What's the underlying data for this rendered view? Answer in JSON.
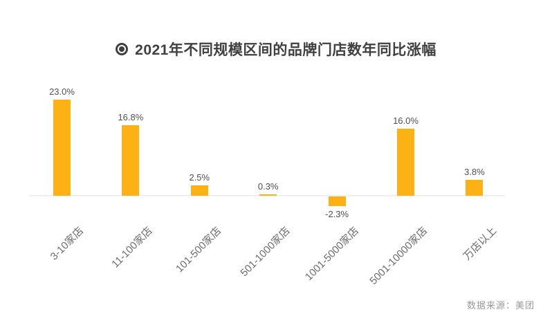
{
  "title": {
    "icon": "fisheye-bullet-icon",
    "text": "2021年不同规模区间的品牌门店数年同比涨幅"
  },
  "source": {
    "text": "数据来源：美团"
  },
  "colors": {
    "bar": "#FCB115",
    "title": "#404040",
    "value_label": "#4f4f4f",
    "axis_label": "#6b6b6b",
    "baseline": "#efefef",
    "source": "#999999"
  },
  "chart_data": {
    "type": "bar",
    "title": "2021年不同规模区间的品牌门店数年同比涨幅",
    "categories": [
      "3-10家店",
      "11-100家店",
      "101-500家店",
      "501-1000家店",
      "1001-5000家店",
      "5001-10000家店",
      "万店以上"
    ],
    "values": [
      23.0,
      16.8,
      2.5,
      0.3,
      -2.3,
      16.0,
      3.8
    ],
    "value_labels": [
      "23.0%",
      "16.8%",
      "2.5%",
      "0.3%",
      "-2.3%",
      "16.0%",
      "3.8%"
    ],
    "unit": "%",
    "xlabel": "",
    "ylabel": "",
    "ylim": [
      -4,
      25
    ],
    "grid": false,
    "legend": false,
    "bar_color": "#FCB115",
    "xlabel_rotation_deg": 45,
    "source": "数据来源：美团"
  }
}
